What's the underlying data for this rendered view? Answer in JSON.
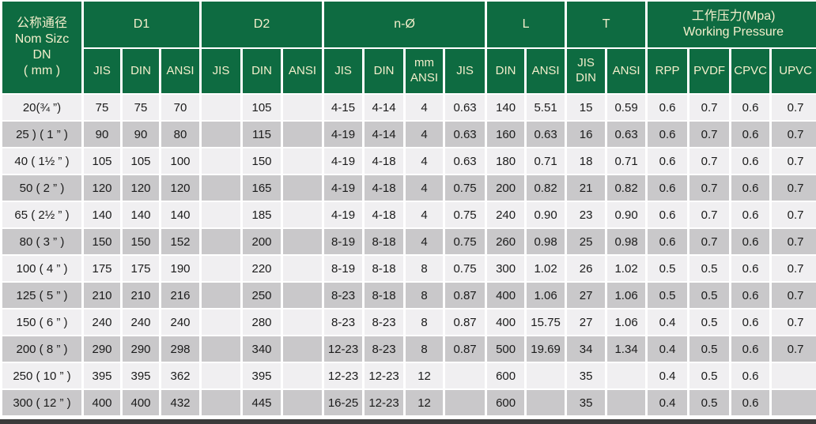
{
  "colors": {
    "header_green": "#0e6b41",
    "header_text": "#f3eecb",
    "row_light": "#f0eff1",
    "row_dark": "#c9c8ca",
    "grid_white": "#ffffff",
    "data_text": "#1b1b1b",
    "bottom_bar": "#3b3b3b"
  },
  "table": {
    "corner_header": "公称通径\nNom Sizc\nDN\n( mm )",
    "groups": [
      {
        "id": "d1",
        "label": "D1",
        "subs": [
          "JIS",
          "DIN",
          "ANSI"
        ]
      },
      {
        "id": "d2",
        "label": "D2",
        "subs": [
          "JIS",
          "DIN",
          "ANSI"
        ]
      },
      {
        "id": "n-hole",
        "label": "n-Ø",
        "subs": [
          "JIS",
          "DIN",
          "mm\nANSI",
          "JIS"
        ]
      },
      {
        "id": "l",
        "label": "L",
        "subs": [
          "DIN",
          "ANSI"
        ]
      },
      {
        "id": "t",
        "label": "T",
        "subs": [
          "JIS\nDIN",
          "ANSI"
        ]
      },
      {
        "id": "working-pressure",
        "label": "工作压力(Mpa)\nWorking Pressure",
        "subs": [
          "RPP",
          "PVDF",
          "CPVC",
          "UPVC"
        ]
      }
    ],
    "rows": [
      {
        "label": "20(¾ ”)",
        "values": [
          "75",
          "75",
          "70",
          "",
          "105",
          "",
          "4-15",
          "4-14",
          "4",
          "0.63",
          "140",
          "5.51",
          "15",
          "0.59",
          "0.6",
          "0.7",
          "0.6",
          "0.7"
        ]
      },
      {
        "label": "25 ) ( 1 ” )",
        "values": [
          "90",
          "90",
          "80",
          "",
          "115",
          "",
          "4-19",
          "4-14",
          "4",
          "0.63",
          "160",
          "0.63",
          "16",
          "0.63",
          "0.6",
          "0.7",
          "0.6",
          "0.7"
        ]
      },
      {
        "label": "40 ( 1½ ” )",
        "values": [
          "105",
          "105",
          "100",
          "",
          "150",
          "",
          "4-19",
          "4-18",
          "4",
          "0.63",
          "180",
          "0.71",
          "18",
          "0.71",
          "0.6",
          "0.7",
          "0.6",
          "0.7"
        ]
      },
      {
        "label": "50 ( 2 ” )",
        "values": [
          "120",
          "120",
          "120",
          "",
          "165",
          "",
          "4-19",
          "4-18",
          "4",
          "0.75",
          "200",
          "0.82",
          "21",
          "0.82",
          "0.6",
          "0.7",
          "0.6",
          "0.7"
        ]
      },
      {
        "label": "65 ( 2½ ” )",
        "values": [
          "140",
          "140",
          "140",
          "",
          "185",
          "",
          "4-19",
          "4-18",
          "4",
          "0.75",
          "240",
          "0.90",
          "23",
          "0.90",
          "0.6",
          "0.7",
          "0.6",
          "0.7"
        ]
      },
      {
        "label": "80 ( 3 ” )",
        "values": [
          "150",
          "150",
          "152",
          "",
          "200",
          "",
          "8-19",
          "8-18",
          "4",
          "0.75",
          "260",
          "0.98",
          "25",
          "0.98",
          "0.6",
          "0.7",
          "0.6",
          "0.7"
        ]
      },
      {
        "label": "100 ( 4 ” )",
        "values": [
          "175",
          "175",
          "190",
          "",
          "220",
          "",
          "8-19",
          "8-18",
          "8",
          "0.75",
          "300",
          "1.02",
          "26",
          "1.02",
          "0.5",
          "0.5",
          "0.6",
          "0.7"
        ]
      },
      {
        "label": "125 ( 5 ” )",
        "values": [
          "210",
          "210",
          "216",
          "",
          "250",
          "",
          "8-23",
          "8-18",
          "8",
          "0.87",
          "400",
          "1.06",
          "27",
          "1.06",
          "0.5",
          "0.5",
          "0.6",
          "0.7"
        ]
      },
      {
        "label": "150 ( 6 ” )",
        "values": [
          "240",
          "240",
          "240",
          "",
          "280",
          "",
          "8-23",
          "8-23",
          "8",
          "0.87",
          "400",
          "15.75",
          "27",
          "1.06",
          "0.4",
          "0.5",
          "0.6",
          "0.7"
        ]
      },
      {
        "label": "200 ( 8 ” )",
        "values": [
          "290",
          "290",
          "298",
          "",
          "340",
          "",
          "12-23",
          "8-23",
          "8",
          "0.87",
          "500",
          "19.69",
          "34",
          "1.34",
          "0.4",
          "0.5",
          "0.6",
          "0.7"
        ]
      },
      {
        "label": "250 ( 10 ” )",
        "values": [
          "395",
          "395",
          "362",
          "",
          "395",
          "",
          "12-23",
          "12-23",
          "12",
          "",
          "600",
          "",
          "35",
          "",
          "0.4",
          "0.5",
          "0.6",
          ""
        ]
      },
      {
        "label": "300 ( 12 ” )",
        "values": [
          "400",
          "400",
          "432",
          "",
          "445",
          "",
          "16-25",
          "12-23",
          "12",
          "",
          "600",
          "",
          "35",
          "",
          "0.4",
          "0.5",
          "0.6",
          ""
        ]
      }
    ]
  }
}
